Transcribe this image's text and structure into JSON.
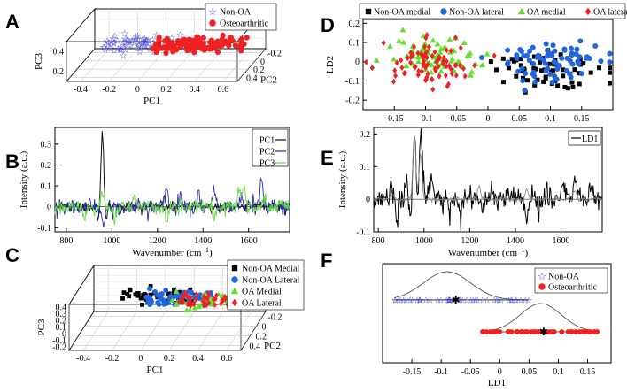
{
  "chart_data": [
    {
      "panel": "A",
      "type": "scatter",
      "dims": 3,
      "xlabel": "PC1",
      "ylabel": "PC2",
      "zlabel": "PC3",
      "x_ticks": [
        "-0.4",
        "-0.2",
        "0",
        "0.2",
        "0.4",
        "0.6"
      ],
      "y_ticks": [
        "-0.2",
        "0",
        "0.2",
        "0.4"
      ],
      "z_ticks": [
        "0.4",
        "0.2"
      ],
      "xlim": [
        -0.45,
        0.6
      ],
      "ylim": [
        -0.25,
        0.45
      ],
      "zlim": [
        0.1,
        0.5
      ],
      "series": [
        {
          "name": "Non-OA",
          "marker": "star",
          "color": "#3333cc",
          "pc1_range": [
            -0.3,
            0.2
          ],
          "pc3_level": 0.32
        },
        {
          "name": "Osteoarthritic",
          "marker": "circle",
          "color": "#ee2222",
          "pc1_range": [
            0.0,
            0.55
          ],
          "pc3_level": 0.3
        }
      ]
    },
    {
      "panel": "B",
      "type": "line",
      "xlabel": "Wavenumber (cm",
      "xlabel_sup": "−1",
      "xlabel_end": ")",
      "ylabel": "Intensity (a.u.)",
      "xlim": [
        750,
        1780
      ],
      "ylim": [
        -0.12,
        0.38
      ],
      "x_ticks": [
        "800",
        "1000",
        "1200",
        "1400",
        "1600"
      ],
      "y_ticks": [
        "-0.1",
        "0",
        "0.1",
        "0.2",
        "0.3"
      ],
      "x_tick_values": [
        800,
        1000,
        1200,
        1400,
        1600
      ],
      "y_tick_values": [
        -0.1,
        0,
        0.1,
        0.2,
        0.3
      ],
      "series": [
        {
          "name": "PC1",
          "color": "#111111",
          "peaks": [
            [
              958,
              0.35
            ],
            [
              940,
              -0.06
            ],
            [
              975,
              -0.07
            ],
            [
              1440,
              -0.03
            ]
          ]
        },
        {
          "name": "PC2",
          "color": "#2a2aaa",
          "peaks": [
            [
              962,
              -0.09
            ],
            [
              1240,
              0.07
            ],
            [
              1300,
              0.05
            ],
            [
              1380,
              0.07
            ],
            [
              1448,
              0.09
            ],
            [
              1570,
              0.05
            ],
            [
              1612,
              0.03
            ],
            [
              1655,
              0.14
            ]
          ]
        },
        {
          "name": "PC3",
          "color": "#66dd44",
          "peaks": [
            [
              880,
              -0.05
            ],
            [
              958,
              0.08
            ],
            [
              1010,
              -0.07
            ],
            [
              1100,
              0.05
            ],
            [
              1240,
              -0.06
            ],
            [
              1450,
              -0.05
            ],
            [
              1560,
              0.08
            ],
            [
              1580,
              0.1
            ],
            [
              1670,
              0.06
            ]
          ]
        }
      ]
    },
    {
      "panel": "C",
      "type": "scatter",
      "dims": 3,
      "xlabel": "PC1",
      "ylabel": "PC2",
      "zlabel": "PC3",
      "x_ticks": [
        "-0.4",
        "-0.2",
        "0",
        "0.2",
        "0.4",
        "0.6"
      ],
      "y_ticks": [
        "-0.2",
        "0",
        "0.2",
        "0.4"
      ],
      "z_ticks": [
        "0.4",
        "0.3",
        "0.2",
        "0.1",
        "0",
        "-0.1",
        "-0.2"
      ],
      "xlim": [
        -0.45,
        0.6
      ],
      "ylim": [
        -0.25,
        0.45
      ],
      "zlim": [
        -0.2,
        0.45
      ],
      "series": [
        {
          "name": "Non-OA Medial",
          "marker": "square",
          "color": "#000000",
          "pc1_range": [
            -0.2,
            0.25
          ],
          "pc3_level": 0.3
        },
        {
          "name": "Non-OA Lateral",
          "marker": "circle",
          "color": "#2266dd",
          "pc1_range": [
            -0.05,
            0.35
          ],
          "pc3_level": 0.27
        },
        {
          "name": "OA Medial",
          "marker": "triangle",
          "color": "#66dd33",
          "pc1_range": [
            0.1,
            0.55
          ],
          "pc3_level": 0.22
        },
        {
          "name": "OA Lateral",
          "marker": "diamond",
          "color": "#ee2222",
          "pc1_range": [
            0.15,
            0.55
          ],
          "pc3_level": 0.24
        }
      ]
    },
    {
      "panel": "D",
      "type": "scatter",
      "xlabel": "",
      "ylabel": "LD2",
      "xlim": [
        -0.2,
        0.2
      ],
      "ylim": [
        -0.25,
        0.22
      ],
      "x_ticks": [
        "-0.15",
        "-0.1",
        "-0.05",
        "0",
        "0.05",
        "0.1",
        "0.15"
      ],
      "y_ticks": [
        "-0.2",
        "-0.1",
        "0",
        "0.1",
        "0.2"
      ],
      "x_tick_values": [
        -0.15,
        -0.1,
        -0.05,
        0,
        0.05,
        0.1,
        0.15
      ],
      "y_tick_values": [
        -0.2,
        -0.1,
        0,
        0.1,
        0.2
      ],
      "series": [
        {
          "name": "Non-OA medial",
          "marker": "square",
          "color": "#000000",
          "center": [
            0.09,
            -0.04
          ],
          "spread": [
            0.045,
            0.06
          ],
          "n": 60
        },
        {
          "name": "Non-OA lateral",
          "marker": "circle",
          "color": "#2266dd",
          "center": [
            0.1,
            0.01
          ],
          "spread": [
            0.045,
            0.06
          ],
          "n": 75
        },
        {
          "name": "OA medial",
          "marker": "triangle",
          "color": "#66dd33",
          "center": [
            -0.085,
            0.03
          ],
          "spread": [
            0.04,
            0.055
          ],
          "n": 70
        },
        {
          "name": "OA lateral",
          "marker": "diamond",
          "color": "#ee2222",
          "center": [
            -0.095,
            -0.01
          ],
          "spread": [
            0.04,
            0.055
          ],
          "n": 80
        }
      ]
    },
    {
      "panel": "E",
      "type": "line",
      "xlabel": "Wavenumber (cm",
      "xlabel_sup": "−1",
      "xlabel_end": ")",
      "ylabel": "Intensity (a.u.)",
      "xlim": [
        780,
        1780
      ],
      "ylim": [
        -0.1,
        0.22
      ],
      "x_ticks": [
        "800",
        "1000",
        "1200",
        "1400",
        "1600"
      ],
      "y_ticks": [
        "-0.1",
        "0",
        "0.1",
        "0.2"
      ],
      "x_tick_values": [
        800,
        1000,
        1200,
        1400,
        1600
      ],
      "y_tick_values": [
        -0.1,
        0,
        0.1,
        0.2
      ],
      "series": [
        {
          "name": "LD1",
          "color": "#000000",
          "peaks": [
            [
              858,
              0.06
            ],
            [
              925,
              0.06
            ],
            [
              958,
              0.21
            ],
            [
              985,
              0.21
            ],
            [
              1000,
              0.05
            ],
            [
              1030,
              0.07
            ],
            [
              880,
              -0.06
            ],
            [
              940,
              -0.05
            ],
            [
              975,
              -0.03
            ],
            [
              1010,
              -0.04
            ],
            [
              1110,
              -0.05
            ],
            [
              1160,
              -0.04
            ],
            [
              1250,
              -0.02
            ],
            [
              1300,
              0.02
            ],
            [
              1450,
              -0.07
            ],
            [
              1500,
              -0.03
            ],
            [
              1540,
              0.03
            ],
            [
              1610,
              0.06
            ],
            [
              1660,
              0.05
            ],
            [
              1730,
              0.04
            ]
          ]
        },
        {
          "name": "",
          "color": "#8a8a8a",
          "peaks": [
            [
              958,
              0.2
            ],
            [
              985,
              0.14
            ],
            [
              860,
              0.02
            ],
            [
              1240,
              0.04
            ],
            [
              1450,
              0.03
            ],
            [
              1660,
              0.03
            ]
          ]
        }
      ]
    },
    {
      "panel": "F",
      "type": "scatter",
      "xlabel": "LD1",
      "ylabel": "",
      "xlim": [
        -0.2,
        0.19
      ],
      "x_ticks": [
        "-0.15",
        "-0.1",
        "-0.05",
        "0",
        "0.05",
        "0.1",
        "0.15"
      ],
      "x_tick_values": [
        -0.15,
        -0.1,
        -0.05,
        0,
        0.05,
        0.1,
        0.15
      ],
      "series": [
        {
          "name": "Non-OA",
          "marker": "star",
          "color": "#3333cc",
          "range": [
            -0.18,
            0.05
          ],
          "mean": -0.075,
          "peak": -0.09,
          "sd": 0.04,
          "n": 45
        },
        {
          "name": "Osteoarthritic",
          "marker": "circle",
          "color": "#ee2222",
          "range": [
            -0.03,
            0.17
          ],
          "mean": 0.075,
          "peak": 0.07,
          "sd": 0.035,
          "n": 60
        }
      ]
    }
  ]
}
